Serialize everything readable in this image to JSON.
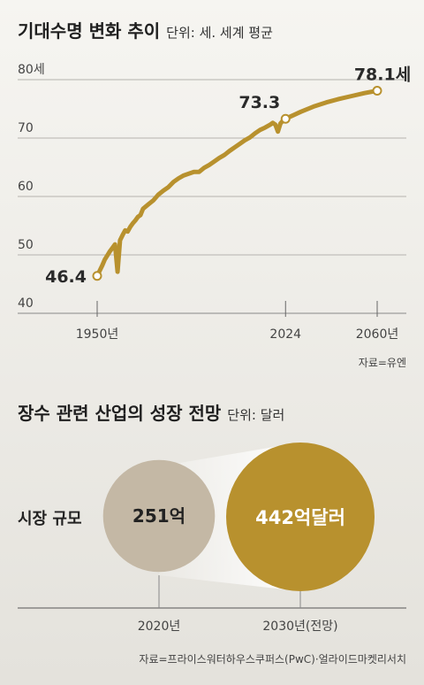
{
  "chart_data": [
    {
      "type": "line",
      "title": "기대수명 변화 추이",
      "unit": "단위: 세. 세계 평균",
      "y_ticks": [
        "80세",
        "70",
        "60",
        "50",
        "40"
      ],
      "ylim": [
        40,
        80
      ],
      "xlim": [
        1950,
        2060
      ],
      "x_ticks": [
        {
          "x": 1950,
          "label": "1950년"
        },
        {
          "x": 2024,
          "label": "2024"
        },
        {
          "x": 2060,
          "label": "2060년"
        }
      ],
      "series": [
        {
          "color": "#b8912e",
          "x": [
            1950,
            1951,
            1952,
            1953,
            1954,
            1955,
            1956,
            1957,
            1958,
            1959,
            1960,
            1961,
            1962,
            1963,
            1964,
            1965,
            1966,
            1967,
            1968,
            1970,
            1972,
            1974,
            1976,
            1978,
            1980,
            1982,
            1984,
            1986,
            1988,
            1990,
            1992,
            1994,
            1996,
            1998,
            2000,
            2002,
            2004,
            2006,
            2008,
            2010,
            2012,
            2014,
            2016,
            2018,
            2019,
            2020,
            2021,
            2022,
            2023,
            2024,
            2030,
            2035,
            2040,
            2045,
            2050,
            2055,
            2060
          ],
          "y": [
            46.4,
            47.3,
            48.2,
            49.2,
            49.9,
            50.6,
            51.2,
            51.8,
            47.1,
            52.5,
            53.4,
            54.2,
            54.0,
            54.8,
            55.4,
            55.9,
            56.5,
            56.8,
            57.9,
            58.6,
            59.3,
            60.3,
            61.0,
            61.6,
            62.5,
            63.1,
            63.6,
            63.9,
            64.2,
            64.2,
            64.9,
            65.4,
            66.0,
            66.6,
            67.1,
            67.8,
            68.4,
            69.0,
            69.6,
            70.1,
            70.8,
            71.4,
            71.8,
            72.3,
            72.6,
            72.3,
            71.1,
            72.5,
            73.0,
            73.3,
            74.5,
            75.4,
            76.1,
            76.7,
            77.2,
            77.7,
            78.1
          ],
          "start_label": "46.4",
          "point_labels": [
            {
              "x": 2024,
              "y": 73.3,
              "label": "73.3"
            },
            {
              "x": 2060,
              "y": 78.1,
              "label": "78.1세"
            }
          ]
        }
      ],
      "source": "자료=유엔"
    },
    {
      "type": "bubble",
      "title": "장수 관련 산업의 성장 전망",
      "unit": "단위: 달러",
      "row_label": "시장 규모",
      "categories": [
        "2020년",
        "2030년(전망)"
      ],
      "values": [
        251,
        442
      ],
      "value_labels": [
        "251억",
        "442억달러"
      ],
      "colors": [
        "#c4b8a5",
        "#b8912e"
      ],
      "source": "자료=프라이스워터하우스쿠퍼스(PwC)·얼라이드마켓리서치"
    }
  ]
}
